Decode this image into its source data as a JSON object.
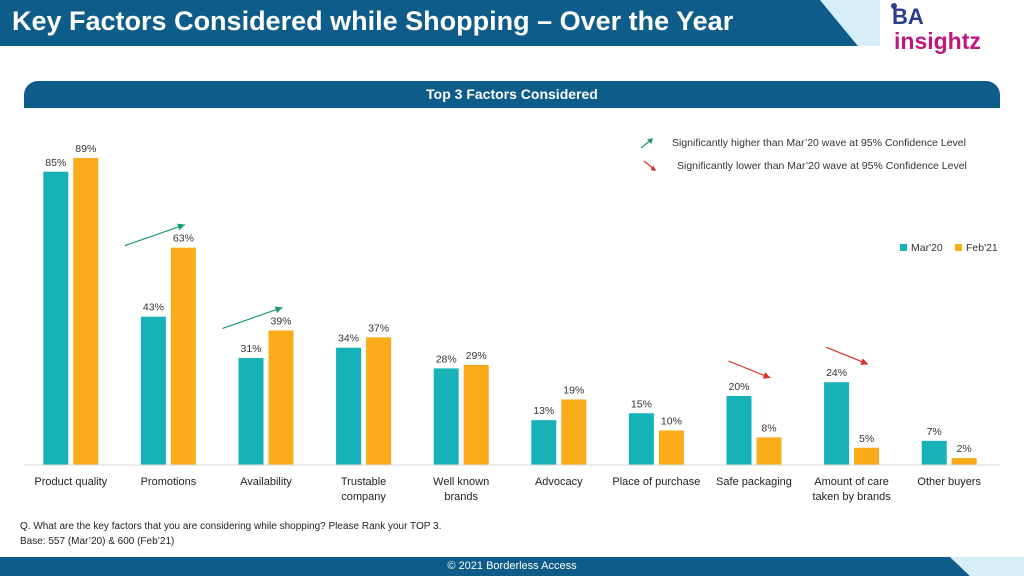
{
  "header": {
    "title": "Key Factors Considered while Shopping – Over the Year"
  },
  "logo": {
    "line1": "BA",
    "line2": "insightz"
  },
  "subtitle": "Top 3 Factors Considered",
  "legend_notes": {
    "higher": "Significantly higher than Mar’20 wave at 95% Confidence Level",
    "lower": "Significantly lower than Mar’20 wave at 95% Confidence Level"
  },
  "colors": {
    "navy": "#0e5c8a",
    "teal": "#17b1b8",
    "orange": "#f9ab1a",
    "green_arrow": "#1a9a74",
    "red_arrow": "#d9322a"
  },
  "chart_data": {
    "type": "bar",
    "categories": [
      "Product quality",
      "Promotions",
      "Availability",
      "Trustable company",
      "Well known brands",
      "Advocacy",
      "Place of purchase",
      "Safe packaging",
      "Amount of care taken by brands",
      "Other buyers"
    ],
    "category_lines": [
      [
        "Product quality"
      ],
      [
        "Promotions"
      ],
      [
        "Availability"
      ],
      [
        "Trustable",
        "company"
      ],
      [
        "Well known",
        "brands"
      ],
      [
        "Advocacy"
      ],
      [
        "Place of purchase"
      ],
      [
        "Safe packaging"
      ],
      [
        "Amount of care",
        "taken by brands"
      ],
      [
        "Other buyers"
      ]
    ],
    "series": [
      {
        "name": "Mar'20",
        "values": [
          85,
          43,
          31,
          34,
          28,
          13,
          15,
          20,
          24,
          7
        ],
        "color": "#17b1b8"
      },
      {
        "name": "Feb'21",
        "values": [
          89,
          63,
          39,
          37,
          29,
          19,
          10,
          8,
          5,
          2
        ],
        "color": "#f9ab1a"
      }
    ],
    "value_suffix": "%",
    "significance": [
      {
        "category": "Promotions",
        "direction": "up"
      },
      {
        "category": "Availability",
        "direction": "up"
      },
      {
        "category": "Safe packaging",
        "direction": "down"
      },
      {
        "category": "Amount of care taken by brands",
        "direction": "down"
      }
    ],
    "ylim": [
      0,
      100
    ],
    "grid": false,
    "legend_placement": "right"
  },
  "footnotes": {
    "question": "Q. What are the key factors that you are considering while shopping? Please Rank your TOP 3.",
    "base": "Base: 557 (Mar’20) & 600 (Feb’21)"
  },
  "footer": {
    "copyright": "© 2021 Borderless Access"
  }
}
